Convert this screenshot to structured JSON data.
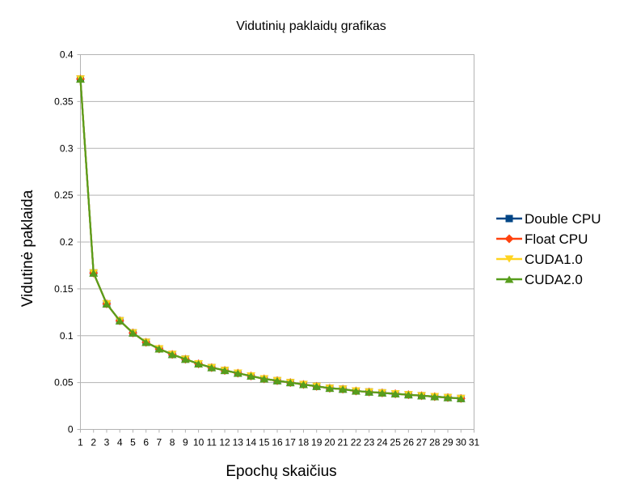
{
  "chart_data": {
    "type": "line",
    "title": "Vidutinių paklaidų grafikas",
    "xlabel": "Epochų skaičius",
    "ylabel": "Vidutinė paklaida",
    "x_ticks": [
      "1",
      "2",
      "3",
      "4",
      "5",
      "6",
      "7",
      "8",
      "9",
      "10",
      "11",
      "12",
      "13",
      "14",
      "15",
      "16",
      "17",
      "18",
      "19",
      "20",
      "21",
      "22",
      "23",
      "24",
      "25",
      "26",
      "27",
      "28",
      "29",
      "30",
      "31"
    ],
    "y_ticks": [
      "0",
      "0.05",
      "0.1",
      "0.15",
      "0.2",
      "0.25",
      "0.3",
      "0.35",
      "0.4"
    ],
    "ylim": [
      0,
      0.4
    ],
    "xlim": [
      1,
      31
    ],
    "grid": "horizontal",
    "legend_position": "right",
    "x": [
      1,
      2,
      3,
      4,
      5,
      6,
      7,
      8,
      9,
      10,
      11,
      12,
      13,
      14,
      15,
      16,
      17,
      18,
      19,
      20,
      21,
      22,
      23,
      24,
      25,
      26,
      27,
      28,
      29,
      30
    ],
    "series": [
      {
        "name": "Double CPU",
        "color": "#004586",
        "marker": "square",
        "values": [
          0.374,
          0.167,
          0.134,
          0.116,
          0.103,
          0.093,
          0.086,
          0.08,
          0.075,
          0.07,
          0.066,
          0.063,
          0.06,
          0.057,
          0.054,
          0.052,
          0.05,
          0.048,
          0.046,
          0.044,
          0.043,
          0.041,
          0.04,
          0.039,
          0.038,
          0.037,
          0.036,
          0.035,
          0.034,
          0.033
        ]
      },
      {
        "name": "Float CPU",
        "color": "#ff420e",
        "marker": "diamond",
        "values": [
          0.374,
          0.167,
          0.134,
          0.116,
          0.103,
          0.093,
          0.086,
          0.08,
          0.075,
          0.07,
          0.066,
          0.063,
          0.06,
          0.057,
          0.054,
          0.052,
          0.05,
          0.048,
          0.046,
          0.044,
          0.043,
          0.041,
          0.04,
          0.039,
          0.038,
          0.037,
          0.036,
          0.035,
          0.034,
          0.033
        ]
      },
      {
        "name": "CUDA1.0",
        "color": "#ffd320",
        "marker": "triangle-down",
        "values": [
          0.374,
          0.167,
          0.134,
          0.116,
          0.103,
          0.093,
          0.086,
          0.08,
          0.075,
          0.07,
          0.066,
          0.063,
          0.06,
          0.057,
          0.054,
          0.052,
          0.05,
          0.048,
          0.046,
          0.044,
          0.043,
          0.041,
          0.04,
          0.039,
          0.038,
          0.037,
          0.036,
          0.035,
          0.034,
          0.033
        ]
      },
      {
        "name": "CUDA2.0",
        "color": "#579d1c",
        "marker": "triangle-up",
        "values": [
          0.374,
          0.167,
          0.134,
          0.116,
          0.103,
          0.093,
          0.086,
          0.08,
          0.075,
          0.07,
          0.066,
          0.063,
          0.06,
          0.057,
          0.054,
          0.052,
          0.05,
          0.048,
          0.046,
          0.044,
          0.043,
          0.041,
          0.04,
          0.039,
          0.038,
          0.037,
          0.036,
          0.035,
          0.034,
          0.033
        ]
      }
    ]
  }
}
